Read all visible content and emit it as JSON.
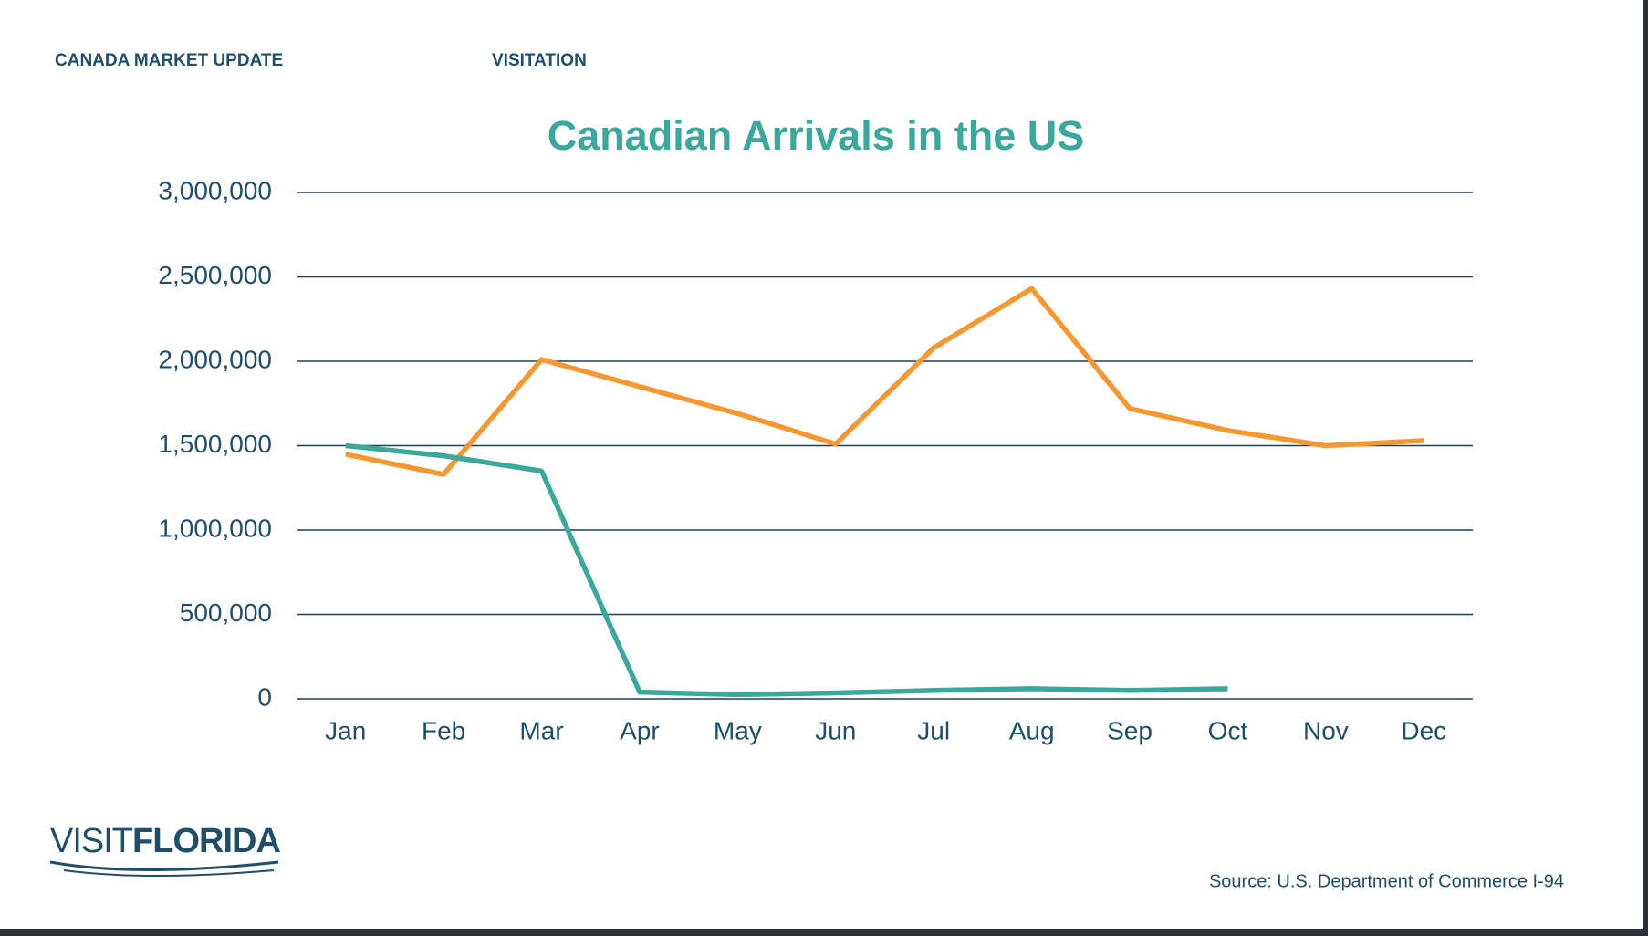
{
  "header": {
    "section": "CANADA MARKET UPDATE",
    "topic": "VISITATION"
  },
  "logo": {
    "light": "VISIT",
    "bold": "FLORIDA"
  },
  "source": "Source: U.S. Department of Commerce I-94",
  "chart_data": {
    "type": "line",
    "title": "Canadian Arrivals in the US",
    "categories": [
      "Jan",
      "Feb",
      "Mar",
      "Apr",
      "May",
      "Jun",
      "Jul",
      "Aug",
      "Sep",
      "Oct",
      "Nov",
      "Dec"
    ],
    "series": [
      {
        "color": "#f7972f",
        "values": [
          1450000,
          1330000,
          2010000,
          1850000,
          1690000,
          1510000,
          2080000,
          2430000,
          1720000,
          1590000,
          1500000,
          1530000
        ]
      },
      {
        "color": "#3aa89a",
        "values": [
          1500000,
          1440000,
          1350000,
          40000,
          25000,
          35000,
          50000,
          60000,
          50000,
          60000,
          null,
          null
        ]
      }
    ],
    "ylim": [
      0,
      3000000
    ],
    "yticks": [
      0,
      {
        "value": 500000,
        "label": "500,000"
      },
      {
        "value": 1000000,
        "label": "1,000,000"
      },
      {
        "value": 1500000,
        "label": "1,500,000"
      },
      {
        "value": 2000000,
        "label": "2,000,000"
      },
      {
        "value": 2500000,
        "label": "2,500,000"
      },
      {
        "value": 3000000,
        "label": "3,000,000"
      }
    ],
    "grid": true
  }
}
